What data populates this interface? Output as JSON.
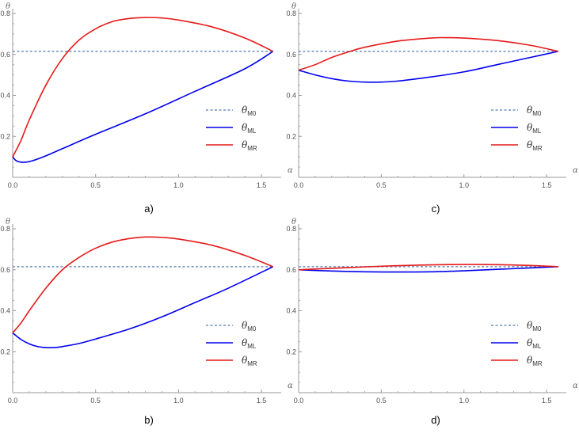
{
  "figure": {
    "colors": {
      "axis": "#9a9a9a",
      "tick_text": "#505050",
      "ref": "#6f8fbf",
      "left": "#0000ee",
      "right": "#e51a1a"
    },
    "legend": [
      {
        "symbol": "θ",
        "sub": "M0",
        "style": "dashed",
        "color_key": "ref"
      },
      {
        "symbol": "θ",
        "sub": "ML",
        "style": "solid",
        "color_key": "left"
      },
      {
        "symbol": "θ",
        "sub": "MR",
        "style": "solid",
        "color_key": "right"
      }
    ]
  },
  "chart_data": [
    {
      "type": "line",
      "label": "a)",
      "xlabel": "α",
      "ylabel": "θ",
      "xlim": [
        0,
        1.6
      ],
      "ylim": [
        0,
        0.8
      ],
      "xticks": [
        "0.0",
        "0.5",
        "1.0",
        "1.5"
      ],
      "yticks": [
        "0.2",
        "0.4",
        "0.6",
        "0.8"
      ],
      "series": [
        {
          "name": "θM0",
          "style": "dashed",
          "x": [
            0,
            1.57
          ],
          "y": [
            0.615,
            0.615
          ]
        },
        {
          "name": "θML",
          "style": "solid",
          "x": [
            0,
            0.02,
            0.05,
            0.08,
            0.12,
            0.2,
            0.3,
            0.5,
            0.8,
            1.1,
            1.4,
            1.57
          ],
          "y": [
            0.1,
            0.082,
            0.074,
            0.074,
            0.081,
            0.105,
            0.14,
            0.21,
            0.31,
            0.42,
            0.53,
            0.615
          ]
        },
        {
          "name": "θMR",
          "style": "solid",
          "x": [
            0,
            0.05,
            0.1,
            0.2,
            0.3,
            0.4,
            0.5,
            0.6,
            0.7,
            0.8,
            0.9,
            1.0,
            1.2,
            1.4,
            1.57
          ],
          "y": [
            0.1,
            0.18,
            0.28,
            0.45,
            0.58,
            0.67,
            0.725,
            0.76,
            0.775,
            0.78,
            0.778,
            0.768,
            0.735,
            0.68,
            0.615
          ]
        }
      ]
    },
    {
      "type": "line",
      "label": "c)",
      "xlabel": "α",
      "ylabel": "θ",
      "xlim": [
        0,
        1.6
      ],
      "ylim": [
        0,
        0.8
      ],
      "xticks": [
        "0.0",
        "0.5",
        "1.0",
        "1.5"
      ],
      "yticks": [
        "0.2",
        "0.4",
        "0.6",
        "0.8"
      ],
      "series": [
        {
          "name": "θM0",
          "style": "dashed",
          "x": [
            0,
            1.57
          ],
          "y": [
            0.615,
            0.615
          ]
        },
        {
          "name": "θML",
          "style": "solid",
          "x": [
            0,
            0.1,
            0.2,
            0.3,
            0.4,
            0.5,
            0.6,
            0.8,
            1.0,
            1.2,
            1.4,
            1.57
          ],
          "y": [
            0.523,
            0.5,
            0.482,
            0.47,
            0.465,
            0.465,
            0.47,
            0.49,
            0.515,
            0.55,
            0.585,
            0.615
          ]
        },
        {
          "name": "θMR",
          "style": "solid",
          "x": [
            0,
            0.1,
            0.2,
            0.3,
            0.4,
            0.6,
            0.8,
            0.9,
            1.0,
            1.2,
            1.4,
            1.57
          ],
          "y": [
            0.523,
            0.55,
            0.585,
            0.612,
            0.635,
            0.665,
            0.68,
            0.682,
            0.68,
            0.668,
            0.645,
            0.615
          ]
        }
      ]
    },
    {
      "type": "line",
      "label": "b)",
      "xlabel": "α",
      "ylabel": "θ",
      "xlim": [
        0,
        1.6
      ],
      "ylim": [
        0,
        0.8
      ],
      "xticks": [
        "0.0",
        "0.5",
        "1.0",
        "1.5"
      ],
      "yticks": [
        "0.2",
        "0.4",
        "0.6",
        "0.8"
      ],
      "series": [
        {
          "name": "θM0",
          "style": "dashed",
          "x": [
            0,
            1.57
          ],
          "y": [
            0.615,
            0.615
          ]
        },
        {
          "name": "θML",
          "style": "solid",
          "x": [
            0,
            0.05,
            0.1,
            0.15,
            0.2,
            0.25,
            0.3,
            0.4,
            0.5,
            0.7,
            0.9,
            1.1,
            1.3,
            1.57
          ],
          "y": [
            0.292,
            0.26,
            0.238,
            0.225,
            0.22,
            0.22,
            0.225,
            0.24,
            0.262,
            0.31,
            0.37,
            0.44,
            0.51,
            0.615
          ]
        },
        {
          "name": "θMR",
          "style": "solid",
          "x": [
            0,
            0.05,
            0.1,
            0.2,
            0.3,
            0.4,
            0.5,
            0.6,
            0.7,
            0.8,
            0.9,
            1.0,
            1.2,
            1.4,
            1.57
          ],
          "y": [
            0.292,
            0.34,
            0.4,
            0.51,
            0.6,
            0.66,
            0.705,
            0.735,
            0.752,
            0.76,
            0.758,
            0.75,
            0.72,
            0.67,
            0.615
          ]
        }
      ]
    },
    {
      "type": "line",
      "label": "d)",
      "xlabel": "α",
      "ylabel": "θ",
      "xlim": [
        0,
        1.6
      ],
      "ylim": [
        0,
        0.8
      ],
      "xticks": [
        "0.0",
        "0.5",
        "1.0",
        "1.5"
      ],
      "yticks": [
        "0.2",
        "0.4",
        "0.6",
        "0.8"
      ],
      "series": [
        {
          "name": "θM0",
          "style": "dashed",
          "x": [
            0,
            1.57
          ],
          "y": [
            0.615,
            0.615
          ]
        },
        {
          "name": "θML",
          "style": "solid",
          "x": [
            0,
            0.2,
            0.4,
            0.6,
            0.8,
            1.0,
            1.2,
            1.4,
            1.57
          ],
          "y": [
            0.6,
            0.594,
            0.59,
            0.589,
            0.59,
            0.595,
            0.602,
            0.609,
            0.615
          ]
        },
        {
          "name": "θMR",
          "style": "solid",
          "x": [
            0,
            0.2,
            0.4,
            0.6,
            0.8,
            1.0,
            1.2,
            1.4,
            1.57
          ],
          "y": [
            0.6,
            0.607,
            0.614,
            0.62,
            0.624,
            0.626,
            0.625,
            0.621,
            0.615
          ]
        }
      ]
    }
  ]
}
